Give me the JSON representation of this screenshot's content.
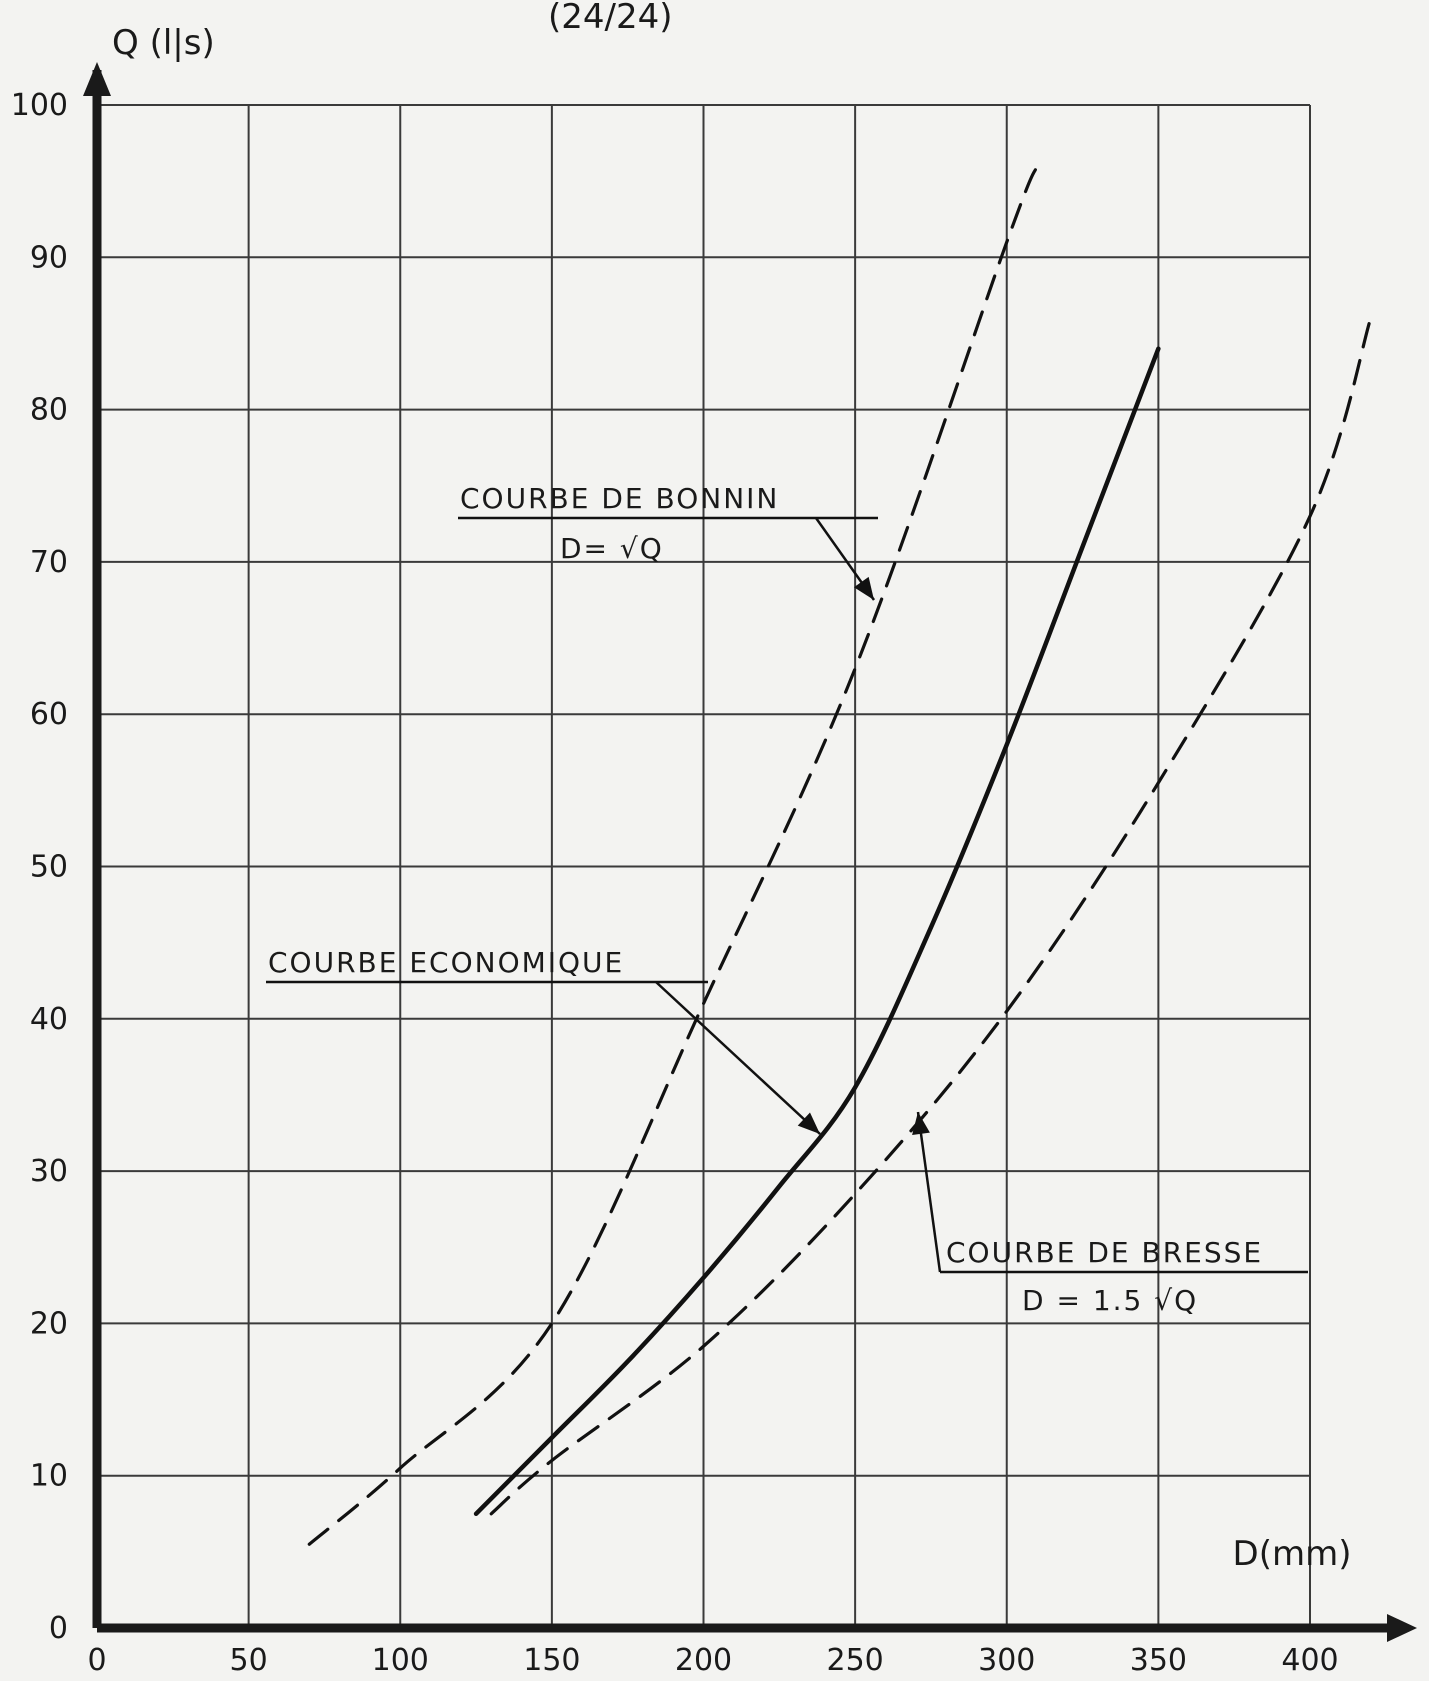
{
  "header": {
    "note": "(24/24)"
  },
  "chart_data": {
    "type": "line",
    "title": "",
    "xlabel": "D(mm)",
    "ylabel": "Q (l|s)",
    "xlim": [
      0,
      400
    ],
    "ylim": [
      0,
      100
    ],
    "xticks": [
      "0",
      "50",
      "100",
      "150",
      "200",
      "250",
      "300",
      "350",
      "400"
    ],
    "yticks": [
      "0",
      "10",
      "20",
      "30",
      "40",
      "50",
      "60",
      "70",
      "80",
      "90",
      "100"
    ],
    "grid": true,
    "series": [
      {
        "name": "COURBE DE BONNIN",
        "formula": "D= √Q",
        "style": "dashed",
        "points": [
          [
            70,
            5.5
          ],
          [
            100,
            10.5
          ],
          [
            150,
            20
          ],
          [
            200,
            41
          ],
          [
            250,
            63
          ],
          [
            300,
            91
          ],
          [
            310,
            96
          ]
        ]
      },
      {
        "name": "COURBE ECONOMIQUE",
        "style": "solid",
        "points": [
          [
            125,
            7.5
          ],
          [
            150,
            12.5
          ],
          [
            175,
            17.5
          ],
          [
            200,
            23
          ],
          [
            225,
            29
          ],
          [
            250,
            35.5
          ],
          [
            275,
            46
          ],
          [
            300,
            58
          ],
          [
            325,
            71
          ],
          [
            350,
            84
          ]
        ]
      },
      {
        "name": "COURBE DE BRESSE",
        "formula": "D = 1.5 √Q",
        "style": "dashed",
        "points": [
          [
            130,
            7.5
          ],
          [
            150,
            11
          ],
          [
            200,
            18.5
          ],
          [
            250,
            28.5
          ],
          [
            300,
            40.5
          ],
          [
            350,
            55.5
          ],
          [
            400,
            73
          ],
          [
            420,
            86
          ]
        ]
      }
    ]
  }
}
